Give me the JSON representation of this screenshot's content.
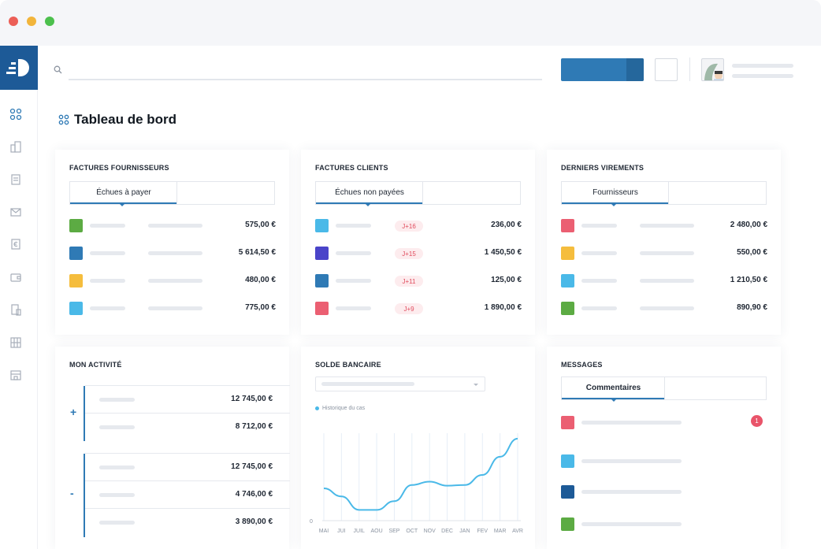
{
  "window": {
    "controls": [
      "close",
      "minimize",
      "maximize"
    ]
  },
  "sidebar": {
    "items": [
      {
        "icon": "dashboard-icon"
      },
      {
        "icon": "buildings-icon"
      },
      {
        "icon": "invoice-icon"
      },
      {
        "icon": "mail-icon"
      },
      {
        "icon": "euro-document-icon"
      },
      {
        "icon": "wallet-icon"
      },
      {
        "icon": "mobile-document-icon"
      },
      {
        "icon": "grid-icon"
      },
      {
        "icon": "store-icon"
      }
    ]
  },
  "header": {
    "search_placeholder": ""
  },
  "page": {
    "title": "Tableau de bord"
  },
  "colors": {
    "brand": "#1d5a97",
    "accent": "#2f7ab5",
    "green": "#5cab43",
    "blue": "#2f7ab5",
    "yellow": "#f5bd3d",
    "light_blue": "#4ab9e8",
    "pink": "#eb5f72",
    "indigo": "#4a44c9",
    "tag_bg": "#fdecee",
    "tag_text": "#e04b5d"
  },
  "supplier_invoices": {
    "title": "FACTURES FOURNISSEURS",
    "tab": "Échues à payer",
    "rows": [
      {
        "color": "#5cab43",
        "amount": "575,00 €"
      },
      {
        "color": "#2f7ab5",
        "amount": "5 614,50 €"
      },
      {
        "color": "#f5bd3d",
        "amount": "480,00 €"
      },
      {
        "color": "#4ab9e8",
        "amount": "775,00 €"
      }
    ]
  },
  "client_invoices": {
    "title": "FACTURES CLIENTS",
    "tab": "Échues non payées",
    "rows": [
      {
        "color": "#4ab9e8",
        "tag": "J+16",
        "amount": "236,00 €"
      },
      {
        "color": "#4a44c9",
        "tag": "J+15",
        "amount": "1 450,50 €"
      },
      {
        "color": "#2f7ab5",
        "tag": "J+11",
        "amount": "125,00 €"
      },
      {
        "color": "#eb5f72",
        "tag": "J+9",
        "amount": "1 890,00 €"
      }
    ]
  },
  "transfers": {
    "title": "DERNIERS VIREMENTS",
    "tab": "Fournisseurs",
    "rows": [
      {
        "color": "#eb5f72",
        "amount": "2 480,00 €"
      },
      {
        "color": "#f5bd3d",
        "amount": "550,00 €"
      },
      {
        "color": "#4ab9e8",
        "amount": "1 210,50 €"
      },
      {
        "color": "#5cab43",
        "amount": "890,90 €"
      }
    ]
  },
  "activity": {
    "title": "MON ACTIVITÉ",
    "plus_sign": "+",
    "minus_sign": "-",
    "plus_rows": [
      "12 745,00 €",
      "8 712,00 €"
    ],
    "minus_rows": [
      "12 745,00 €",
      "4 746,00 €",
      "3 890,00 €"
    ]
  },
  "bank": {
    "title": "SOLDE BANCAIRE",
    "legend": "Historique du cas"
  },
  "chart_data": {
    "type": "line",
    "title": "",
    "xlabel": "",
    "ylabel": "",
    "categories": [
      "MAI",
      "JUI",
      "JUIL",
      "AOU",
      "SEP",
      "OCT",
      "NOV",
      "DEC",
      "JAN",
      "FEV",
      "MAR",
      "AVR"
    ],
    "series": [
      {
        "name": "Historique du cas",
        "values": [
          48,
          36,
          16,
          16,
          29,
          53,
          58,
          52,
          53,
          68,
          95,
          122
        ]
      }
    ],
    "y_tick_labels": [
      "0"
    ],
    "ylim": [
      0,
      130
    ],
    "grid": "vertical",
    "legend": "top-left",
    "color": "#4ab9e8"
  },
  "messages": {
    "title": "MESSAGES",
    "tab": "Commentaires",
    "badge": "1",
    "rows": [
      {
        "color": "#eb5f72"
      },
      {
        "color": "#4ab9e8"
      },
      {
        "color": "#1d5a97"
      },
      {
        "color": "#5cab43"
      }
    ]
  }
}
